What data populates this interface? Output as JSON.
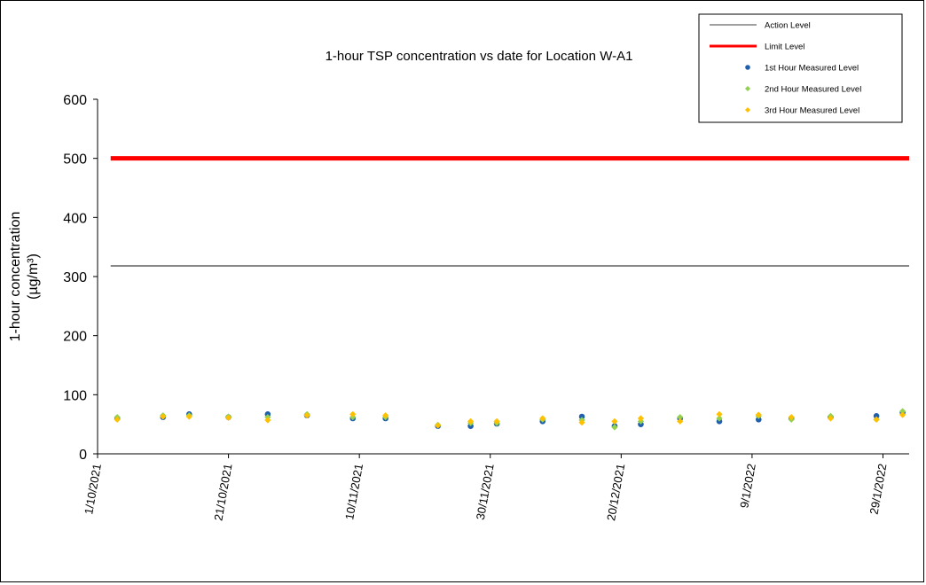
{
  "chart_data": {
    "type": "scatter",
    "title": "1-hour TSP concentration vs date for Location W-A1",
    "ylabel_line1": "1-hour concentration",
    "ylabel_line2": "(µg/m³)",
    "xlabel": "",
    "ylim": [
      0,
      600
    ],
    "yticks": [
      0,
      100,
      200,
      300,
      400,
      500,
      600
    ],
    "xlim": [
      "2021-10-01",
      "2022-02-02"
    ],
    "xtick_labels": [
      "1/10/2021",
      "21/10/2021",
      "10/11/2021",
      "30/11/2021",
      "20/12/2021",
      "9/1/2022",
      "29/1/2022"
    ],
    "xtick_dates": [
      "2021-10-01",
      "2021-10-21",
      "2021-11-10",
      "2021-11-30",
      "2021-12-20",
      "2022-01-09",
      "2022-01-29"
    ],
    "grid": false,
    "legend_position": "top-right",
    "reference_lines": [
      {
        "name": "Action Level",
        "value": 318,
        "color": "#404040"
      },
      {
        "name": "Limit Level",
        "value": 500,
        "color": "#ff0000"
      }
    ],
    "series": [
      {
        "name": "1st Hour Measured Level",
        "color": "#1f5fad",
        "points": [
          [
            "2021-10-04",
            60
          ],
          [
            "2021-10-11",
            62
          ],
          [
            "2021-10-15",
            67
          ],
          [
            "2021-10-21",
            62
          ],
          [
            "2021-10-27",
            67
          ],
          [
            "2021-11-02",
            65
          ],
          [
            "2021-11-09",
            60
          ],
          [
            "2021-11-14",
            60
          ],
          [
            "2021-11-22",
            47
          ],
          [
            "2021-11-27",
            47
          ],
          [
            "2021-12-01",
            51
          ],
          [
            "2021-12-08",
            55
          ],
          [
            "2021-12-14",
            63
          ],
          [
            "2021-12-19",
            47
          ],
          [
            "2021-12-23",
            50
          ],
          [
            "2021-12-29",
            60
          ],
          [
            "2022-01-04",
            55
          ],
          [
            "2022-01-10",
            58
          ],
          [
            "2022-01-15",
            60
          ],
          [
            "2022-01-21",
            62
          ],
          [
            "2022-01-28",
            64
          ],
          [
            "2022-02-01",
            70
          ]
        ]
      },
      {
        "name": "2nd Hour Measured Level",
        "color": "#92d050",
        "points": [
          [
            "2021-10-04",
            62
          ],
          [
            "2021-10-11",
            65
          ],
          [
            "2021-10-15",
            65
          ],
          [
            "2021-10-21",
            63
          ],
          [
            "2021-10-27",
            62
          ],
          [
            "2021-11-02",
            67
          ],
          [
            "2021-11-09",
            62
          ],
          [
            "2021-11-14",
            62
          ],
          [
            "2021-11-22",
            49
          ],
          [
            "2021-11-27",
            52
          ],
          [
            "2021-12-01",
            52
          ],
          [
            "2021-12-08",
            58
          ],
          [
            "2021-12-14",
            57
          ],
          [
            "2021-12-19",
            45
          ],
          [
            "2021-12-23",
            55
          ],
          [
            "2021-12-29",
            62
          ],
          [
            "2022-01-04",
            60
          ],
          [
            "2022-01-10",
            64
          ],
          [
            "2022-01-15",
            58
          ],
          [
            "2022-01-21",
            64
          ],
          [
            "2022-01-28",
            58
          ],
          [
            "2022-02-01",
            72
          ]
        ]
      },
      {
        "name": "3rd Hour Measured Level",
        "color": "#ffc000",
        "points": [
          [
            "2021-10-04",
            58
          ],
          [
            "2021-10-11",
            63
          ],
          [
            "2021-10-15",
            63
          ],
          [
            "2021-10-21",
            61
          ],
          [
            "2021-10-27",
            57
          ],
          [
            "2021-11-02",
            65
          ],
          [
            "2021-11-09",
            67
          ],
          [
            "2021-11-14",
            65
          ],
          [
            "2021-11-22",
            48
          ],
          [
            "2021-11-27",
            55
          ],
          [
            "2021-12-01",
            55
          ],
          [
            "2021-12-08",
            60
          ],
          [
            "2021-12-14",
            53
          ],
          [
            "2021-12-19",
            55
          ],
          [
            "2021-12-23",
            60
          ],
          [
            "2021-12-29",
            55
          ],
          [
            "2022-01-04",
            67
          ],
          [
            "2022-01-10",
            66
          ],
          [
            "2022-01-15",
            62
          ],
          [
            "2022-01-21",
            60
          ],
          [
            "2022-01-28",
            58
          ],
          [
            "2022-02-01",
            66
          ]
        ]
      }
    ]
  }
}
